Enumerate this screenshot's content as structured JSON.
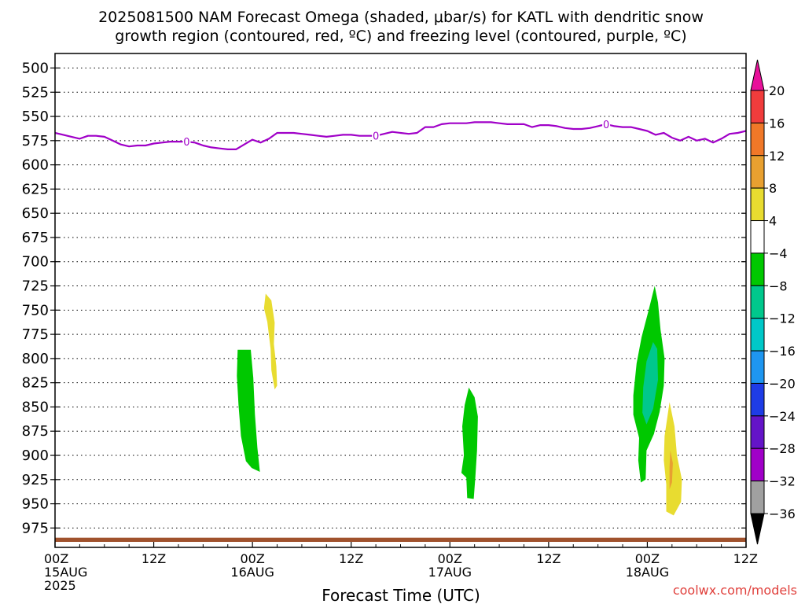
{
  "chart_data": {
    "type": "heatmap",
    "title_line1": "2025081500 NAM Forecast Omega (shaded, μbar/s) for KATL with dendritic snow",
    "title_line2": "growth region (contoured, red, ºC) and freezing level (contoured, purple, ºC)",
    "xlabel": "Forecast Time (UTC)",
    "watermark": "coolwx.com/models",
    "y_axis": {
      "unit": "hPa",
      "range": [
        485,
        995
      ],
      "inverted": true,
      "ticks": [
        "500",
        "525",
        "550",
        "575",
        "600",
        "625",
        "650",
        "675",
        "700",
        "725",
        "750",
        "775",
        "800",
        "825",
        "850",
        "875",
        "900",
        "925",
        "950",
        "975"
      ]
    },
    "x_axis": {
      "unit": "forecast hour",
      "range": [
        0,
        84
      ],
      "ticks": [
        {
          "hour": 0,
          "line1": "00Z",
          "line2": "15AUG",
          "line3": "2025"
        },
        {
          "hour": 12,
          "line1": "12Z",
          "line2": "",
          "line3": ""
        },
        {
          "hour": 24,
          "line1": "00Z",
          "line2": "16AUG",
          "line3": ""
        },
        {
          "hour": 36,
          "line1": "12Z",
          "line2": "",
          "line3": ""
        },
        {
          "hour": 48,
          "line1": "00Z",
          "line2": "17AUG",
          "line3": ""
        },
        {
          "hour": 60,
          "line1": "12Z",
          "line2": "",
          "line3": ""
        },
        {
          "hour": 72,
          "line1": "00Z",
          "line2": "18AUG",
          "line3": ""
        },
        {
          "hour": 84,
          "line1": "12Z",
          "line2": "",
          "line3": ""
        }
      ]
    },
    "grid": true,
    "colorbar": {
      "placement": "right",
      "labels": [
        "20",
        "16",
        "12",
        "8",
        "4",
        "−4",
        "−8",
        "−12",
        "−16",
        "−20",
        "−24",
        "−28",
        "−32",
        "−36"
      ],
      "colors": [
        "#e8109a",
        "#f03c3c",
        "#f07828",
        "#e8a030",
        "#e8dc30",
        "#ffffff",
        "#00c800",
        "#00c88c",
        "#00c8c8",
        "#1e96f0",
        "#1e3ce6",
        "#6414c8",
        "#a000c8",
        "#a0a0a0",
        "#000000"
      ]
    },
    "freezing_level": {
      "color": "#a000c8",
      "label": "0",
      "label_hours": [
        16,
        39,
        67
      ],
      "points": [
        [
          0,
          567
        ],
        [
          1,
          569
        ],
        [
          2,
          571
        ],
        [
          3,
          573
        ],
        [
          4,
          570
        ],
        [
          5,
          570
        ],
        [
          6,
          571
        ],
        [
          7,
          575
        ],
        [
          8,
          579
        ],
        [
          9,
          581
        ],
        [
          10,
          580
        ],
        [
          11,
          580
        ],
        [
          12,
          578
        ],
        [
          13,
          577
        ],
        [
          14,
          576
        ],
        [
          15,
          576
        ],
        [
          16,
          576
        ],
        [
          17,
          577
        ],
        [
          18,
          580
        ],
        [
          19,
          582
        ],
        [
          20,
          583
        ],
        [
          21,
          584
        ],
        [
          22,
          584
        ],
        [
          23,
          579
        ],
        [
          24,
          574
        ],
        [
          25,
          577
        ],
        [
          26,
          573
        ],
        [
          27,
          567
        ],
        [
          28,
          567
        ],
        [
          29,
          567
        ],
        [
          30,
          568
        ],
        [
          31,
          569
        ],
        [
          32,
          570
        ],
        [
          33,
          571
        ],
        [
          34,
          570
        ],
        [
          35,
          569
        ],
        [
          36,
          569
        ],
        [
          37,
          570
        ],
        [
          38,
          570
        ],
        [
          39,
          570
        ],
        [
          40,
          568
        ],
        [
          41,
          566
        ],
        [
          42,
          567
        ],
        [
          43,
          568
        ],
        [
          44,
          567
        ],
        [
          45,
          561
        ],
        [
          46,
          561
        ],
        [
          47,
          558
        ],
        [
          48,
          557
        ],
        [
          49,
          557
        ],
        [
          50,
          557
        ],
        [
          51,
          556
        ],
        [
          52,
          556
        ],
        [
          53,
          556
        ],
        [
          54,
          557
        ],
        [
          55,
          558
        ],
        [
          56,
          558
        ],
        [
          57,
          558
        ],
        [
          58,
          561
        ],
        [
          59,
          559
        ],
        [
          60,
          559
        ],
        [
          61,
          560
        ],
        [
          62,
          562
        ],
        [
          63,
          563
        ],
        [
          64,
          563
        ],
        [
          65,
          562
        ],
        [
          66,
          560
        ],
        [
          67,
          558
        ],
        [
          68,
          560
        ],
        [
          69,
          561
        ],
        [
          70,
          561
        ],
        [
          71,
          563
        ],
        [
          72,
          565
        ],
        [
          73,
          569
        ],
        [
          74,
          567
        ],
        [
          75,
          572
        ],
        [
          76,
          575
        ],
        [
          77,
          571
        ],
        [
          78,
          575
        ],
        [
          79,
          573
        ],
        [
          80,
          577
        ],
        [
          81,
          573
        ],
        [
          82,
          568
        ],
        [
          83,
          567
        ],
        [
          84,
          565
        ]
      ]
    },
    "omega_shaded_regions": [
      {
        "value_bin": "-4 to -8",
        "color": "#00c800",
        "points": [
          [
            22.2,
            791
          ],
          [
            23.8,
            791
          ],
          [
            24.1,
            820
          ],
          [
            24.3,
            858
          ],
          [
            24.6,
            892
          ],
          [
            24.9,
            917
          ],
          [
            23.9,
            913
          ],
          [
            23.2,
            906
          ],
          [
            22.6,
            880
          ],
          [
            22.3,
            848
          ],
          [
            22.1,
            818
          ]
        ]
      },
      {
        "value_bin": "4 to 8",
        "color": "#e8dc30",
        "points": [
          [
            25.6,
            733
          ],
          [
            26.3,
            740
          ],
          [
            26.7,
            763
          ],
          [
            26.6,
            785
          ],
          [
            26.9,
            808
          ],
          [
            27.0,
            828
          ],
          [
            26.7,
            832
          ],
          [
            26.3,
            812
          ],
          [
            26.2,
            790
          ],
          [
            25.8,
            762
          ],
          [
            25.4,
            748
          ]
        ]
      },
      {
        "value_bin": "-4 to -8",
        "color": "#00c800",
        "points": [
          [
            50.3,
            830
          ],
          [
            51.0,
            840
          ],
          [
            51.4,
            860
          ],
          [
            51.3,
            895
          ],
          [
            51.1,
            922
          ],
          [
            50.9,
            945
          ],
          [
            50.1,
            944
          ],
          [
            50.0,
            923
          ],
          [
            49.4,
            918
          ],
          [
            49.7,
            900
          ],
          [
            49.5,
            870
          ],
          [
            49.8,
            848
          ]
        ]
      },
      {
        "value_bin": "-4 to -8",
        "color": "#00c800",
        "points": [
          [
            72.9,
            725
          ],
          [
            73.3,
            742
          ],
          [
            73.6,
            770
          ],
          [
            74.1,
            800
          ],
          [
            74.0,
            828
          ],
          [
            73.5,
            855
          ],
          [
            72.8,
            878
          ],
          [
            71.9,
            895
          ],
          [
            71.8,
            925
          ],
          [
            71.2,
            928
          ],
          [
            70.9,
            905
          ],
          [
            71.0,
            882
          ],
          [
            70.3,
            858
          ],
          [
            70.3,
            838
          ],
          [
            70.7,
            805
          ],
          [
            71.3,
            778
          ],
          [
            72.1,
            752
          ]
        ]
      },
      {
        "value_bin": "-8 to -12",
        "color": "#00c88c",
        "points": [
          [
            72.7,
            783
          ],
          [
            73.2,
            790
          ],
          [
            73.3,
            822
          ],
          [
            72.7,
            852
          ],
          [
            71.9,
            868
          ],
          [
            71.4,
            856
          ],
          [
            71.5,
            830
          ],
          [
            71.9,
            803
          ]
        ]
      },
      {
        "value_bin": "4 to 8",
        "color": "#e8dc30",
        "points": [
          [
            74.7,
            845
          ],
          [
            75.3,
            870
          ],
          [
            75.6,
            900
          ],
          [
            76.2,
            925
          ],
          [
            76.1,
            948
          ],
          [
            75.2,
            962
          ],
          [
            74.3,
            958
          ],
          [
            74.3,
            930
          ],
          [
            74.0,
            905
          ],
          [
            74.1,
            880
          ]
        ]
      },
      {
        "value_bin": "8 to 12",
        "color": "#e8a030",
        "points": [
          [
            74.8,
            895
          ],
          [
            75.1,
            908
          ],
          [
            75.0,
            928
          ],
          [
            74.7,
            935
          ],
          [
            74.7,
            912
          ]
        ]
      }
    ],
    "terrain": {
      "color": "#a0522d",
      "surface_hpa": 985
    }
  }
}
